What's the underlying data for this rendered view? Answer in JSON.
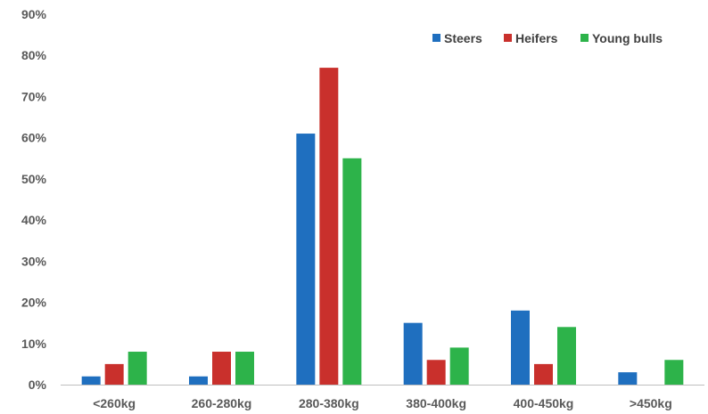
{
  "chart_data": {
    "type": "bar",
    "categories": [
      "<260kg",
      "260-280kg",
      "280-380kg",
      "380-400kg",
      "400-450kg",
      ">450kg"
    ],
    "series": [
      {
        "name": "Steers",
        "color": "#1f6fbf",
        "values": [
          2,
          2,
          61,
          15,
          18,
          3
        ]
      },
      {
        "name": "Heifers",
        "color": "#c9302c",
        "values": [
          5,
          8,
          77,
          6,
          5,
          0
        ]
      },
      {
        "name": "Young bulls",
        "color": "#2db34a",
        "values": [
          8,
          8,
          55,
          9,
          14,
          6
        ]
      }
    ],
    "ylim": [
      0,
      90
    ],
    "yticks": [
      "0%",
      "10%",
      "20%",
      "30%",
      "40%",
      "50%",
      "60%",
      "70%",
      "80%",
      "90%"
    ],
    "grid": false,
    "legend_position": "top-right"
  }
}
